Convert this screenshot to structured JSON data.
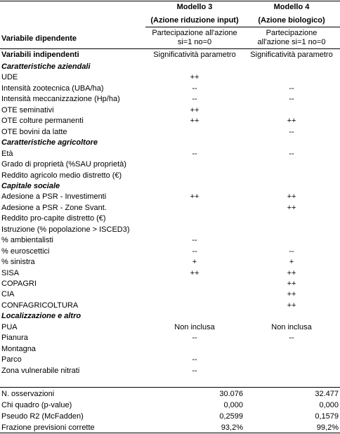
{
  "header": {
    "models": [
      "Modello 3",
      "Modello 4"
    ],
    "actions": [
      "(Azione riduzione input)",
      "(Azione biologico)"
    ],
    "dependent_label": "Variabile dipendente",
    "dependent": [
      [
        "Partecipazione all'azione",
        "si=1 no=0"
      ],
      [
        "Partecipazione",
        "all'azione si=1 no=0"
      ]
    ],
    "independent_label": "Variabili indipendenti",
    "independent": [
      "Significatività parametro",
      "Significatività parametro"
    ]
  },
  "sections": [
    {
      "title": "Caratteristiche aziendali",
      "rows": [
        {
          "label": "UDE",
          "m3": "++"
        },
        {
          "label": "Intensità zootecnica (UBA/ha)",
          "m3": "--",
          "m4": "--"
        },
        {
          "label": "Intensità meccanizzazione (Hp/ha)",
          "m3": "--",
          "m4": "--"
        },
        {
          "label": "OTE seminativi",
          "m3": "++"
        },
        {
          "label": "OTE colture permanenti",
          "m3": "++",
          "m4": "++"
        },
        {
          "label": "OTE bovini da latte",
          "m4": "--"
        }
      ]
    },
    {
      "title": "Caratteristiche agricoltore",
      "rows": [
        {
          "label": "Età",
          "m3": "--",
          "m4": "--"
        },
        {
          "label": "Grado di proprietà (%SAU proprietà)"
        },
        {
          "label": "Reddito agricolo medio distretto (€)"
        }
      ]
    },
    {
      "title": "Capitale sociale",
      "rows": [
        {
          "label": "Adesione a PSR - Investimenti",
          "m3": "++",
          "m4": "++"
        },
        {
          "label": "Adesione a PSR - Zone Svant.",
          "m4": "++"
        },
        {
          "label": "Reddito pro-capite distretto (€)"
        },
        {
          "label": "Istruzione (% popolazione > ISCED3)"
        },
        {
          "label": "% ambientalisti",
          "m3": "--"
        },
        {
          "label": "% euroscettici",
          "m3": "--",
          "m4": "--"
        },
        {
          "label": "% sinistra",
          "m3": "+",
          "m4": "+"
        },
        {
          "label": "SISA",
          "m3": "++",
          "m4": "++"
        },
        {
          "label": "COPAGRI",
          "m4": "++"
        },
        {
          "label": "CIA",
          "m4": "++"
        },
        {
          "label": "CONFAGRICOLTURA",
          "m4": "++"
        }
      ]
    },
    {
      "title": "Localizzazione e altro",
      "rows": [
        {
          "label": "PUA",
          "m3": "Non inclusa",
          "m4": "Non inclusa"
        },
        {
          "label": "Pianura",
          "m3": "--",
          "m4": "--"
        },
        {
          "label": "Montagna"
        },
        {
          "label": "Parco",
          "m3": "--"
        },
        {
          "label": "Zona vulnerabile nitrati",
          "m3": "--"
        }
      ]
    }
  ],
  "stats": [
    {
      "label": "N. osservazioni",
      "m3": "30.076",
      "m4": "32.477"
    },
    {
      "label": "Chi quadro (p-value)",
      "m3": "0,000",
      "m4": "0,000"
    },
    {
      "label": "Pseudo R2 (McFadden)",
      "m3": "0,2599",
      "m4": "0,1579"
    },
    {
      "label": "Frazione previsioni corrette",
      "m3": "93,2%",
      "m4": "99,2%"
    }
  ]
}
